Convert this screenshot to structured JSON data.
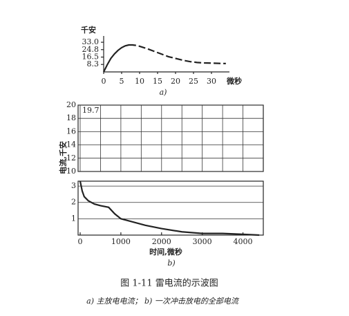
{
  "chart_data": [
    {
      "type": "line",
      "y_label": "千安",
      "x_label": "微秒",
      "caption": "a)",
      "x": [
        0,
        1,
        2,
        3,
        4,
        5,
        6,
        7,
        8,
        9,
        10,
        12,
        14,
        16,
        18,
        20,
        22,
        24,
        26,
        28,
        30,
        32,
        34
      ],
      "values": [
        0,
        8,
        15,
        20,
        24,
        27,
        29,
        30,
        30,
        29.5,
        28.5,
        26,
        23,
        20,
        17,
        15,
        13,
        11.5,
        10.5,
        10,
        9.8,
        9.5,
        9.3
      ],
      "color": "#222222",
      "xlim": [
        0,
        35
      ],
      "xticks": [
        0,
        5,
        10,
        15,
        20,
        25,
        30
      ],
      "ylim": [
        0,
        40
      ],
      "yticks": [
        8.3,
        16.5,
        24.8,
        {
          "value": 33,
          "label": "33.0"
        }
      ]
    },
    {
      "type": "broken-line",
      "y_label": "电流,千安",
      "x_label": "时间,微秒",
      "caption": "b)",
      "xlim": [
        0,
        4500
      ],
      "xticks": [
        0,
        1000,
        2000,
        3000,
        4000
      ],
      "grid": true,
      "color": "#222222",
      "panels": [
        {
          "ylim": [
            10,
            20
          ],
          "yticks": [
            10,
            12,
            14,
            16,
            18,
            20
          ],
          "annotation": "19.7"
        },
        {
          "ylim": [
            0,
            3.3
          ],
          "yticks": [
            1,
            2,
            3
          ],
          "x": [
            0,
            50,
            100,
            200,
            350,
            500,
            700,
            850,
            1000,
            1150,
            1300,
            1600,
            2000,
            2500,
            3000,
            3500,
            4000,
            4400
          ],
          "values": [
            3.3,
            2.7,
            2.35,
            2.1,
            1.9,
            1.8,
            1.7,
            1.3,
            1.0,
            0.9,
            0.8,
            0.6,
            0.4,
            0.2,
            0.1,
            0.1,
            0.05,
            0
          ]
        }
      ]
    }
  ],
  "figure": {
    "title": "图 1-11  雷电流的示波图",
    "subtitle": "a) 主放电电流； b) 一次冲击放电的全部电流"
  }
}
